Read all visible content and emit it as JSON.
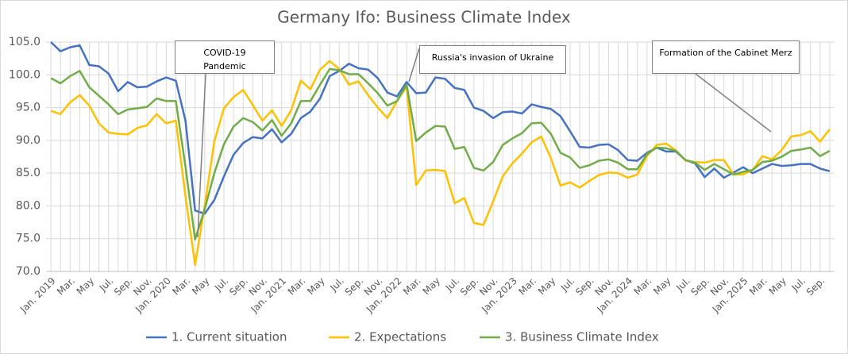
{
  "chart_data": {
    "type": "line",
    "title": "Germany Ifo: Business Climate Index",
    "categories": [
      "Jan. 2019",
      null,
      "Mar.",
      null,
      "May",
      null,
      "Jul.",
      null,
      "Sep.",
      null,
      "Nov.",
      null,
      "Jan. 2020",
      null,
      "Mar.",
      null,
      "May",
      null,
      "Jul.",
      null,
      "Sep.",
      null,
      "Nov.",
      null,
      "Jan. 2021",
      null,
      "Mar.",
      null,
      "May",
      null,
      "Jul.",
      null,
      "Sep.",
      null,
      "Nov.",
      null,
      "Jan. 2022",
      null,
      "Mar.",
      null,
      "May",
      null,
      "Jul.",
      null,
      "Sep.",
      null,
      "Nov.",
      null,
      "Jan. 2023",
      null,
      "Mar.",
      null,
      "May",
      null,
      "Jul.",
      null,
      "Sep.",
      null,
      "Nov.",
      null,
      "Jan. 2024",
      null,
      "Mar.",
      null,
      "May",
      null,
      "Jul.",
      null,
      "Sep.",
      null,
      "Nov.",
      null,
      "Jan. 2025",
      null,
      "Mar.",
      null,
      "May",
      null,
      "Jul.",
      null,
      "Sep.",
      null
    ],
    "series": [
      {
        "name": "1. Current situation",
        "color": "#4472c4",
        "values": [
          105.0,
          103.6,
          104.2,
          104.5,
          101.5,
          101.3,
          100.2,
          97.5,
          98.9,
          98.1,
          98.2,
          99.0,
          99.6,
          99.1,
          93.0,
          79.3,
          78.8,
          80.9,
          84.5,
          87.8,
          89.6,
          90.5,
          90.3,
          91.7,
          89.7,
          91.0,
          93.4,
          94.4,
          96.4,
          99.8,
          100.6,
          101.7,
          101.0,
          100.8,
          99.5,
          97.3,
          96.7,
          98.9,
          97.2,
          97.3,
          99.6,
          99.4,
          98.0,
          97.7,
          95.0,
          94.5,
          93.4,
          94.3,
          94.4,
          94.1,
          95.5,
          95.1,
          94.8,
          93.7,
          91.4,
          89.0,
          88.9,
          89.3,
          89.4,
          88.5,
          87.0,
          86.9,
          88.1,
          88.9,
          88.3,
          88.3,
          87.0,
          86.5,
          84.4,
          85.7,
          84.3,
          85.1,
          85.9,
          85.0,
          85.7,
          86.4,
          86.1,
          86.2,
          86.4,
          86.4,
          85.7,
          85.3
        ]
      },
      {
        "name": "2. Expectations",
        "color": "#ffc000",
        "values": [
          94.5,
          94.0,
          95.8,
          96.9,
          95.3,
          92.6,
          91.2,
          91.0,
          90.9,
          91.9,
          92.3,
          94.0,
          92.6,
          93.0,
          81.5,
          71.0,
          80.0,
          89.8,
          94.9,
          96.6,
          97.7,
          95.4,
          93.0,
          94.6,
          92.2,
          94.6,
          99.1,
          97.8,
          100.8,
          102.1,
          100.9,
          98.5,
          99.0,
          96.9,
          95.0,
          93.4,
          96.0,
          98.2,
          83.2,
          85.4,
          85.5,
          85.3,
          80.4,
          81.2,
          77.4,
          77.1,
          80.7,
          84.5,
          86.5,
          88.0,
          89.7,
          90.6,
          87.3,
          83.1,
          83.6,
          82.8,
          83.8,
          84.7,
          85.1,
          85.0,
          84.3,
          84.8,
          87.6,
          89.3,
          89.5,
          88.5,
          86.9,
          86.7,
          86.6,
          87.0,
          87.0,
          84.8,
          84.8,
          85.5,
          87.6,
          87.1,
          88.5,
          90.6,
          90.8,
          91.4,
          89.8,
          91.7
        ]
      },
      {
        "name": "3. Business Climate Index",
        "color": "#70ad47",
        "values": [
          99.5,
          98.7,
          99.8,
          100.6,
          98.1,
          96.8,
          95.5,
          94.0,
          94.7,
          94.9,
          95.1,
          96.4,
          96.0,
          96.0,
          86.0,
          74.9,
          79.5,
          85.0,
          89.4,
          92.1,
          93.4,
          92.8,
          91.5,
          93.1,
          90.7,
          92.6,
          96.0,
          96.0,
          98.5,
          100.9,
          100.7,
          100.1,
          100.1,
          98.7,
          97.2,
          95.3,
          96.0,
          98.5,
          89.9,
          91.2,
          92.2,
          92.1,
          88.7,
          89.0,
          85.8,
          85.4,
          86.7,
          89.3,
          90.3,
          91.1,
          92.6,
          92.7,
          91.0,
          88.1,
          87.4,
          85.8,
          86.2,
          86.9,
          87.1,
          86.6,
          85.6,
          85.6,
          87.9,
          88.9,
          88.8,
          88.4,
          87.0,
          86.6,
          85.5,
          86.4,
          85.6,
          84.8,
          85.2,
          85.5,
          86.7,
          86.9,
          87.5,
          88.4,
          88.6,
          88.9,
          87.6,
          88.4
        ]
      }
    ],
    "ylim": [
      70,
      105
    ],
    "yticks": [
      {
        "value": 70,
        "label": "70.0"
      },
      {
        "value": 75,
        "label": "75.0"
      },
      {
        "value": 80,
        "label": "80.0"
      },
      {
        "value": 85,
        "label": "85.0"
      },
      {
        "value": 90,
        "label": "90.0"
      },
      {
        "value": 95,
        "label": "95.0"
      },
      {
        "value": 100,
        "label": "100.0"
      },
      {
        "value": 105,
        "label": "105.0"
      }
    ],
    "grid": true,
    "legend": "bottom",
    "annotations": [
      {
        "text": "COVID-19 Pandemic"
      },
      {
        "text": "Russia's invasion of Ukraine"
      },
      {
        "text": "Formation of the Cabinet Merz"
      }
    ]
  }
}
